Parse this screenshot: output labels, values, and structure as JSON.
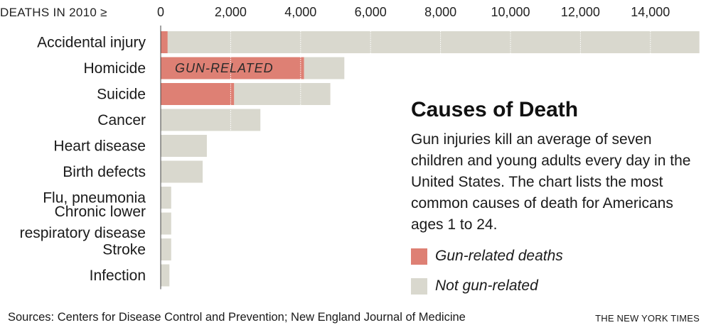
{
  "chart_data": {
    "type": "bar",
    "orientation": "horizontal",
    "stacked": true,
    "axis_title": "DEATHS IN 2010 ≥",
    "xlim": [
      0,
      15400
    ],
    "xticks": [
      0,
      2000,
      4000,
      6000,
      8000,
      10000,
      12000,
      14000
    ],
    "xtick_labels": [
      "0",
      "2,000",
      "4,000",
      "6,000",
      "8,000",
      "10,000",
      "12,000",
      "14,000"
    ],
    "grid": "vertical",
    "categories": [
      [
        "Accidental injury"
      ],
      [
        "Homicide"
      ],
      [
        "Suicide"
      ],
      [
        "Cancer"
      ],
      [
        "Heart disease"
      ],
      [
        "Birth defects"
      ],
      [
        "Flu, pneumonia"
      ],
      [
        "Chronic lower",
        "respiratory disease"
      ],
      [
        "Stroke"
      ],
      [
        "Infection"
      ]
    ],
    "series": [
      {
        "name": "Gun-related deaths",
        "values": [
          200,
          4100,
          2100,
          0,
          0,
          0,
          0,
          0,
          0,
          0
        ]
      },
      {
        "name": "Not gun-related",
        "values": [
          15200,
          1150,
          2750,
          2850,
          1320,
          1200,
          300,
          300,
          300,
          250
        ]
      }
    ],
    "bar_annotation": {
      "text": "GUN-RELATED",
      "category_index": 1
    },
    "colors": {
      "gun": "#de8074",
      "not_gun": "#d9d8ce",
      "grid": "#ffffff"
    }
  },
  "side": {
    "title": "Causes of Death",
    "description": "Gun injuries kill an average of seven children and young adults every day in the United States. The chart lists the most common causes of death for Americans ages 1 to 24."
  },
  "legend": {
    "gun": "Gun-related deaths",
    "not_gun": "Not gun-related"
  },
  "footer": {
    "sources": "Sources: Centers for Disease Control and Prevention; New England Journal of Medicine",
    "credit": "THE NEW YORK TIMES"
  }
}
